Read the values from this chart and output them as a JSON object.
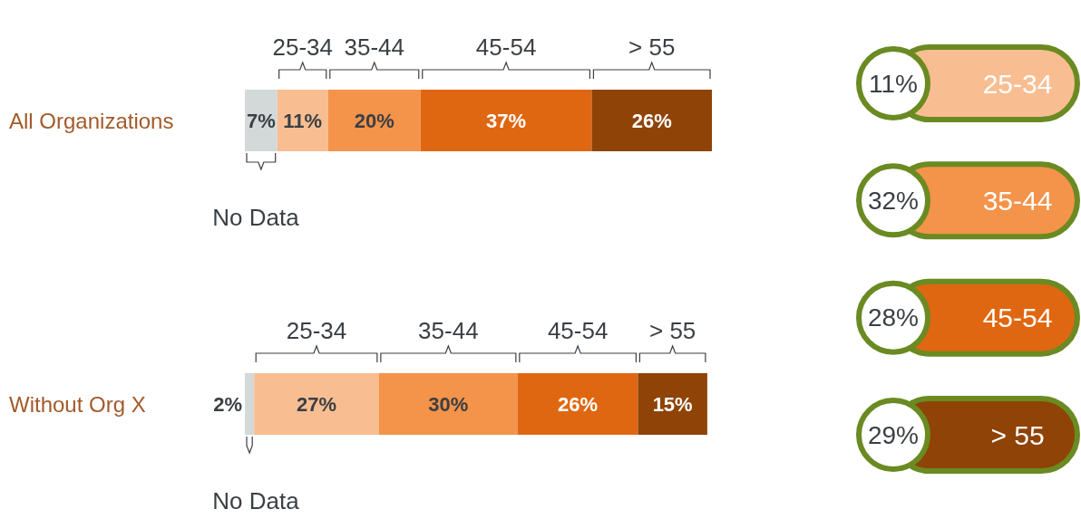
{
  "chart_data": [
    {
      "type": "bar",
      "orientation": "horizontal",
      "stacked": true,
      "categories": [
        "All Organizations",
        "Without Org X"
      ],
      "series": [
        {
          "name": "No Data",
          "color": "#d3d9d9",
          "values": [
            7,
            2
          ],
          "value_labels": [
            "7%",
            "2%"
          ]
        },
        {
          "name": "25-34",
          "color": "#f8be92",
          "values": [
            11,
            27
          ],
          "value_labels": [
            "11%",
            "27%"
          ]
        },
        {
          "name": "35-44",
          "color": "#f4934a",
          "values": [
            20,
            30
          ],
          "value_labels": [
            "20%",
            "30%"
          ]
        },
        {
          "name": "45-54",
          "color": "#e06711",
          "values": [
            37,
            26
          ],
          "value_labels": [
            "37%",
            "26%"
          ]
        },
        {
          "name": "> 55",
          "color": "#8f4306",
          "values": [
            26,
            15
          ],
          "value_labels": [
            "26%",
            "15%"
          ]
        }
      ]
    },
    {
      "type": "other",
      "categories": [
        "25-34",
        "35-44",
        "45-54",
        "> 55"
      ],
      "value_labels": [
        "11%",
        "32%",
        "28%",
        "29%"
      ],
      "colors": [
        "#f8be92",
        "#f4934a",
        "#e06711",
        "#8f4306"
      ]
    }
  ]
}
